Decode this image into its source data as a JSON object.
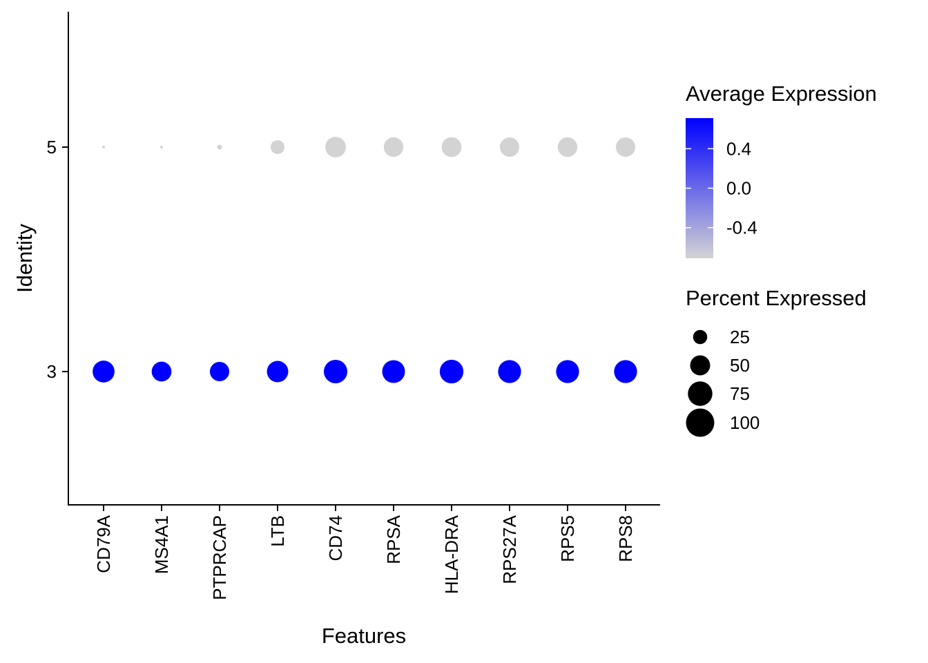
{
  "chart_data": {
    "type": "scatter",
    "subtype": "dot-plot",
    "xlabel": "Features",
    "ylabel": "Identity",
    "categories": [
      "CD79A",
      "MS4A1",
      "PTPRCAP",
      "LTB",
      "CD74",
      "RPSA",
      "HLA-DRA",
      "RPS27A",
      "RPS5",
      "RPS8"
    ],
    "identities": [
      "5",
      "3"
    ],
    "series": [
      {
        "name": "5",
        "percent_expressed": [
          1,
          1,
          3,
          24,
          53,
          48,
          49,
          47,
          48,
          47
        ],
        "avg_expression": [
          -0.71,
          -0.71,
          -0.71,
          -0.71,
          -0.71,
          -0.71,
          -0.71,
          -0.71,
          -0.71,
          -0.71
        ]
      },
      {
        "name": "3",
        "percent_expressed": [
          60,
          49,
          47,
          57,
          69,
          65,
          70,
          66,
          66,
          66
        ],
        "avg_expression": [
          0.71,
          0.71,
          0.71,
          0.71,
          0.71,
          0.71,
          0.71,
          0.71,
          0.71,
          0.71
        ]
      }
    ],
    "color_legend": {
      "title": "Average Expression",
      "ticks": [
        "0.4",
        "0.0",
        "-0.4"
      ],
      "tick_values": [
        0.4,
        0.0,
        -0.4
      ],
      "range": [
        -0.71,
        0.71
      ],
      "low_color": "#d3d3d3",
      "high_color": "#0000ff"
    },
    "size_legend": {
      "title": "Percent Expressed",
      "ticks": [
        "25",
        "50",
        "75",
        "100"
      ],
      "tick_values": [
        25,
        50,
        75,
        100
      ]
    },
    "grid": false,
    "legend_position": "right"
  }
}
